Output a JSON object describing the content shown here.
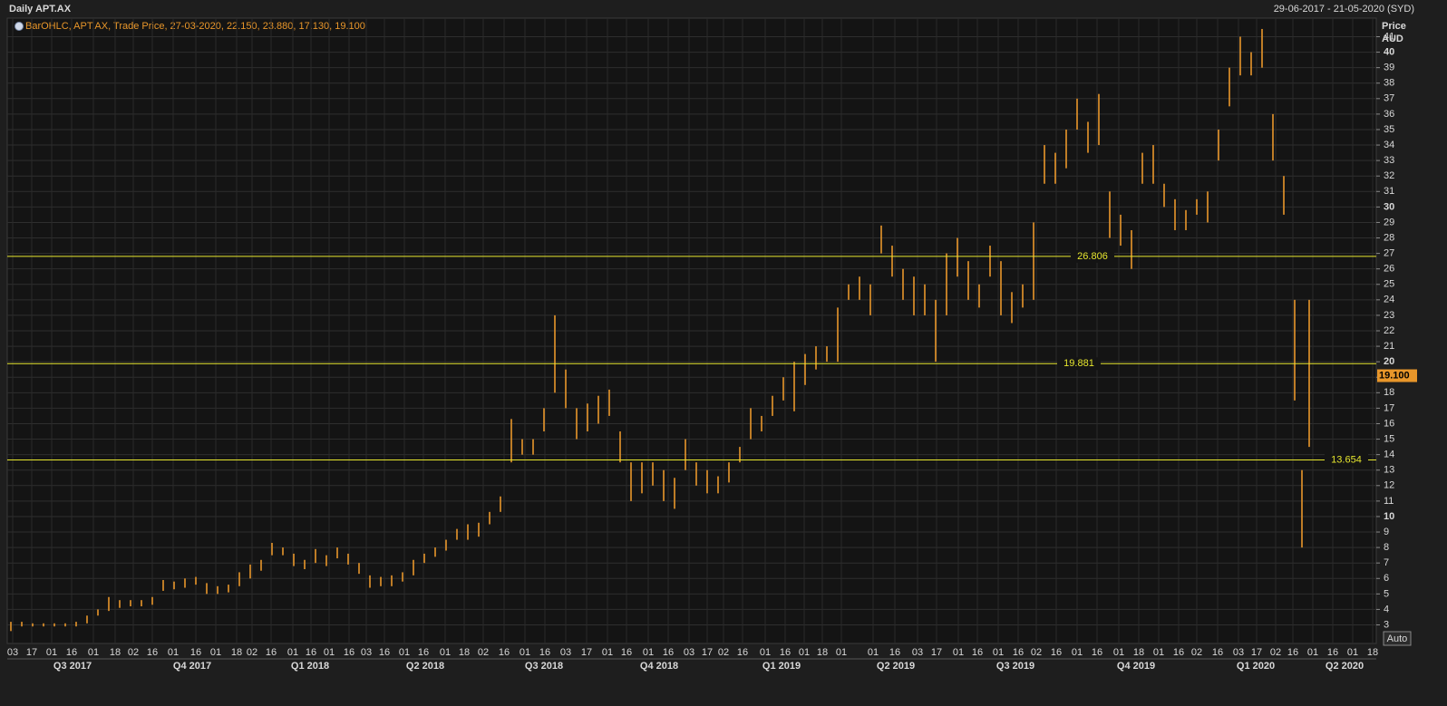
{
  "chart_data": {
    "type": "ohlc",
    "title": "Daily APT.AX",
    "date_range": "29-06-2017 - 21-05-2020 (SYD)",
    "legend_text": "BarOHLC, APT.AX, Trade Price, 27-03-2020, 22.150, 23.880, 17.130, 19.100",
    "y_axis_title": "Price",
    "y_axis_unit": "AUD",
    "scale_button": "Auto",
    "color": "#e8962a",
    "level_color": "#e6e62e",
    "grid": true,
    "xlim": [
      0,
      754
    ],
    "ylim": [
      1.8,
      42.2
    ],
    "yticks": [
      3,
      4,
      5,
      6,
      7,
      8,
      9,
      10,
      11,
      12,
      13,
      14,
      15,
      16,
      17,
      18,
      19,
      20,
      21,
      22,
      23,
      24,
      25,
      26,
      27,
      28,
      29,
      30,
      31,
      32,
      33,
      34,
      35,
      36,
      37,
      38,
      39,
      40,
      41
    ],
    "x": [
      1,
      7,
      13,
      19,
      25,
      31,
      37,
      43,
      49,
      55,
      61,
      67,
      73,
      79,
      85,
      91,
      97,
      103,
      109,
      115,
      121,
      127,
      133,
      139,
      145,
      151,
      157,
      163,
      169,
      175,
      181,
      187,
      193,
      199,
      205,
      211,
      217,
      223,
      229,
      235,
      241,
      247,
      253,
      259,
      265,
      271,
      277,
      283,
      289,
      295,
      301,
      307,
      313,
      319,
      325,
      331,
      337,
      343,
      349,
      355,
      361,
      367,
      373,
      379,
      385,
      391,
      397,
      403,
      409,
      415,
      421,
      427,
      433,
      439,
      445,
      451,
      457,
      463,
      469,
      475,
      481,
      487,
      493,
      499,
      505,
      511,
      517,
      523,
      529,
      535,
      541,
      547,
      553,
      559,
      565,
      571,
      577,
      583,
      589,
      595,
      601,
      607,
      613,
      619,
      625,
      631,
      637,
      643,
      649,
      655,
      661,
      667,
      673,
      679,
      685,
      691,
      697,
      703,
      709,
      713,
      717
    ],
    "high": [
      3.2,
      3.2,
      3.1,
      3.1,
      3.1,
      3.1,
      3.2,
      3.6,
      4.0,
      4.8,
      4.6,
      4.6,
      4.6,
      4.8,
      5.9,
      5.8,
      6.0,
      6.1,
      5.7,
      5.5,
      5.6,
      6.4,
      6.9,
      7.2,
      8.3,
      8.0,
      7.6,
      7.2,
      7.9,
      7.5,
      8.0,
      7.6,
      7.0,
      6.2,
      6.1,
      6.2,
      6.4,
      7.2,
      7.6,
      8.0,
      8.5,
      9.2,
      9.5,
      9.6,
      10.3,
      11.3,
      16.3,
      15.0,
      15.0,
      17.0,
      23.0,
      19.5,
      17.0,
      17.3,
      17.8,
      18.2,
      15.5,
      13.5,
      13.5,
      13.5,
      13.0,
      12.5,
      15.0,
      13.5,
      13.0,
      12.6,
      13.5,
      14.5,
      17.0,
      16.5,
      17.8,
      19.0,
      20.0,
      20.5,
      21.0,
      21.0,
      23.5,
      25.0,
      25.5,
      25.0,
      28.8,
      27.5,
      26.0,
      25.5,
      25.0,
      24.0,
      27.0,
      28.0,
      26.5,
      25.0,
      27.5,
      26.5,
      24.5,
      25.0,
      29.0,
      34.0,
      33.5,
      35.0,
      37.0,
      35.5,
      37.3,
      31.0,
      29.5,
      28.5,
      33.5,
      34.0,
      31.5,
      30.5,
      29.8,
      30.5,
      31.0,
      35.0,
      39.0,
      41.0,
      40.0,
      41.5,
      36.0,
      32.0,
      24.0,
      13.0,
      24.0
    ],
    "low": [
      2.6,
      2.9,
      2.9,
      2.9,
      2.9,
      2.9,
      2.9,
      3.1,
      3.6,
      3.9,
      4.1,
      4.2,
      4.2,
      4.3,
      5.2,
      5.3,
      5.4,
      5.6,
      5.0,
      5.0,
      5.1,
      5.5,
      6.0,
      6.5,
      7.5,
      7.5,
      6.8,
      6.6,
      7.0,
      6.8,
      7.3,
      6.9,
      6.3,
      5.4,
      5.5,
      5.5,
      5.8,
      6.2,
      7.0,
      7.4,
      7.8,
      8.5,
      8.5,
      8.7,
      9.5,
      10.3,
      13.5,
      14.0,
      14.0,
      15.5,
      18.0,
      17.0,
      15.0,
      15.5,
      16.0,
      16.5,
      13.5,
      11.0,
      11.5,
      12.0,
      11.0,
      10.5,
      13.0,
      12.0,
      11.5,
      11.5,
      12.2,
      13.5,
      15.0,
      15.5,
      16.5,
      17.5,
      16.8,
      18.5,
      19.5,
      20.0,
      20.0,
      24.0,
      24.0,
      23.0,
      27.0,
      25.5,
      24.0,
      23.0,
      23.0,
      20.0,
      23.0,
      25.5,
      24.0,
      23.5,
      25.5,
      23.0,
      22.5,
      23.5,
      24.0,
      31.5,
      31.5,
      32.5,
      35.0,
      33.5,
      34.0,
      28.0,
      27.5,
      26.0,
      31.5,
      31.5,
      30.0,
      28.5,
      28.5,
      29.5,
      29.0,
      33.0,
      36.5,
      38.5,
      38.5,
      39.0,
      33.0,
      29.5,
      17.5,
      8.0,
      14.5
    ],
    "levels": [
      26.806,
      19.881,
      13.654
    ],
    "last_price": {
      "value": 19.1,
      "label": "19.100"
    },
    "xticks": [
      {
        "value": 2,
        "label": "03"
      },
      {
        "value": 12.5,
        "label": "17"
      },
      {
        "value": 23.5,
        "label": "01"
      },
      {
        "value": 34.5,
        "label": "16"
      },
      {
        "value": 46.5,
        "label": "01"
      },
      {
        "value": 58.5,
        "label": "18"
      },
      {
        "value": 68.5,
        "label": "02"
      },
      {
        "value": 79,
        "label": "16"
      },
      {
        "value": 90.5,
        "label": "01"
      },
      {
        "value": 103,
        "label": "16"
      },
      {
        "value": 114,
        "label": "01"
      },
      {
        "value": 125.5,
        "label": "18"
      },
      {
        "value": 134,
        "label": "02"
      },
      {
        "value": 144.5,
        "label": "16"
      },
      {
        "value": 156.5,
        "label": "01"
      },
      {
        "value": 166.5,
        "label": "16"
      },
      {
        "value": 176.5,
        "label": "01"
      },
      {
        "value": 187.5,
        "label": "16"
      },
      {
        "value": 197,
        "label": "03"
      },
      {
        "value": 207,
        "label": "16"
      },
      {
        "value": 218,
        "label": "01"
      },
      {
        "value": 228.5,
        "label": "16"
      },
      {
        "value": 240.5,
        "label": "01"
      },
      {
        "value": 251,
        "label": "18"
      },
      {
        "value": 261.5,
        "label": "02"
      },
      {
        "value": 273,
        "label": "16"
      },
      {
        "value": 284.5,
        "label": "01"
      },
      {
        "value": 295.5,
        "label": "16"
      },
      {
        "value": 307,
        "label": "03"
      },
      {
        "value": 318.5,
        "label": "17"
      },
      {
        "value": 330,
        "label": "01"
      },
      {
        "value": 340.5,
        "label": "16"
      },
      {
        "value": 352.5,
        "label": "01"
      },
      {
        "value": 363.5,
        "label": "16"
      },
      {
        "value": 375,
        "label": "03"
      },
      {
        "value": 385,
        "label": "17"
      },
      {
        "value": 394,
        "label": "02"
      },
      {
        "value": 404.5,
        "label": "16"
      },
      {
        "value": 417,
        "label": "01"
      },
      {
        "value": 428,
        "label": "16"
      },
      {
        "value": 438.5,
        "label": "01"
      },
      {
        "value": 448.5,
        "label": "18"
      },
      {
        "value": 459,
        "label": "01"
      },
      {
        "value": 476.5,
        "label": "01"
      },
      {
        "value": 488.5,
        "label": "16"
      },
      {
        "value": 501,
        "label": "03"
      },
      {
        "value": 511.5,
        "label": "17"
      },
      {
        "value": 523.5,
        "label": "01"
      },
      {
        "value": 534,
        "label": "16"
      },
      {
        "value": 545.5,
        "label": "01"
      },
      {
        "value": 556.5,
        "label": "16"
      },
      {
        "value": 566.5,
        "label": "02"
      },
      {
        "value": 577.5,
        "label": "16"
      },
      {
        "value": 589,
        "label": "01"
      },
      {
        "value": 600,
        "label": "16"
      },
      {
        "value": 612,
        "label": "01"
      },
      {
        "value": 623,
        "label": "18"
      },
      {
        "value": 634,
        "label": "01"
      },
      {
        "value": 645,
        "label": "16"
      },
      {
        "value": 655,
        "label": "02"
      },
      {
        "value": 666.5,
        "label": "16"
      },
      {
        "value": 678,
        "label": "03"
      },
      {
        "value": 688,
        "label": "17"
      },
      {
        "value": 698.5,
        "label": "02"
      },
      {
        "value": 708,
        "label": "16"
      },
      {
        "value": 719,
        "label": "01"
      },
      {
        "value": 730,
        "label": "16"
      },
      {
        "value": 741,
        "label": "01"
      },
      {
        "value": 752,
        "label": "18"
      }
    ],
    "quarters": [
      {
        "value": 35,
        "label": "Q3 2017"
      },
      {
        "value": 101,
        "label": "Q4 2017"
      },
      {
        "value": 166,
        "label": "Q1 2018"
      },
      {
        "value": 229.5,
        "label": "Q2 2018"
      },
      {
        "value": 295,
        "label": "Q3 2018"
      },
      {
        "value": 358.5,
        "label": "Q4 2018"
      },
      {
        "value": 426,
        "label": "Q1 2019"
      },
      {
        "value": 489,
        "label": "Q2 2019"
      },
      {
        "value": 555,
        "label": "Q3 2019"
      },
      {
        "value": 621.5,
        "label": "Q4 2019"
      },
      {
        "value": 687.5,
        "label": "Q1 2020"
      },
      {
        "value": 736.5,
        "label": "Q2 2020"
      }
    ]
  }
}
